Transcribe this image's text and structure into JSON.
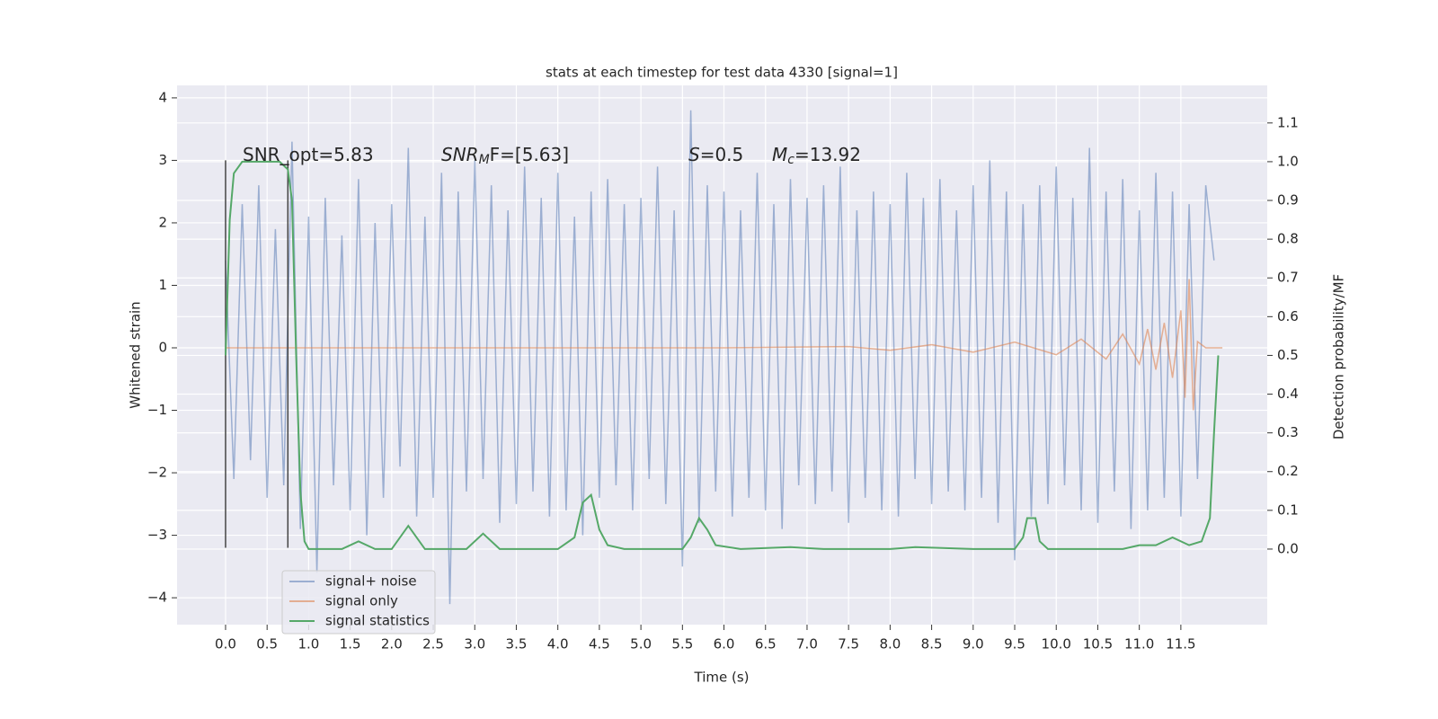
{
  "chart_data": {
    "type": "line",
    "title": "stats at each timestep for test data 4330 [signal=1]",
    "xlabel": "Time (s)",
    "ylabel": "Whitened strain",
    "y2label": "Detection probability/MF",
    "xlim": [
      -0.584,
      12.54
    ],
    "ylim": [
      -4.43,
      4.2
    ],
    "y2lim": [
      -0.195,
      1.197
    ],
    "xticks": [
      {
        "value": 0,
        "label": "0.0"
      },
      0.5,
      {
        "value": 1,
        "label": "1.0"
      },
      1.5,
      {
        "value": 2,
        "label": "2.0"
      },
      2.5,
      {
        "value": 3,
        "label": "3.0"
      },
      3.5,
      {
        "value": 4,
        "label": "4.0"
      },
      4.5,
      {
        "value": 5,
        "label": "5.0"
      },
      5.5,
      {
        "value": 6,
        "label": "6.0"
      },
      6.5,
      {
        "value": 7,
        "label": "7.0"
      },
      7.5,
      {
        "value": 8,
        "label": "8.0"
      },
      8.5,
      {
        "value": 9,
        "label": "9.0"
      },
      9.5,
      {
        "value": 10,
        "label": "10.0"
      },
      10.5,
      {
        "value": 11,
        "label": "11.0"
      },
      11.5
    ],
    "yticks": [
      {
        "value": -4,
        "label": "−4"
      },
      {
        "value": -3,
        "label": "−3"
      },
      {
        "value": -2,
        "label": "−2"
      },
      {
        "value": -1,
        "label": "−1"
      },
      0,
      1,
      2,
      3,
      4
    ],
    "y2ticks": [
      {
        "value": 0,
        "label": "0.0"
      },
      0.1,
      0.2,
      0.3,
      0.4,
      0.5,
      0.6,
      0.7,
      0.8,
      0.9,
      {
        "value": 1,
        "label": "1.0"
      },
      1.1
    ],
    "grid": true,
    "legend": "lower left",
    "annotations": [
      {
        "text": "SNR_opt=5.83"
      },
      {
        "text": "SNR",
        "sub": "M",
        "after": "F=[5.63]"
      },
      {
        "text": "S",
        "after": "=0.5"
      },
      {
        "text": "M",
        "sub": "c",
        "after": "=13.92"
      }
    ],
    "vlines": [
      {
        "x": 0,
        "ymin": -3.2,
        "ymax": 3,
        "color": "#444444"
      },
      {
        "x": 0.75,
        "ymin": -3.2,
        "ymax": 3,
        "color": "#444444"
      }
    ],
    "series": [
      {
        "name": "signal+ noise",
        "color": "#4c72b0",
        "opacity": 0.5,
        "x": [
          0,
          0.1,
          0.2,
          0.3,
          0.4,
          0.5,
          0.6,
          0.7,
          0.8,
          0.9,
          1,
          1.1,
          1.2,
          1.3,
          1.4,
          1.5,
          1.6,
          1.7,
          1.8,
          1.9,
          2,
          2.1,
          2.2,
          2.3,
          2.4,
          2.5,
          2.6,
          2.7,
          2.8,
          2.9,
          3,
          3.1,
          3.2,
          3.3,
          3.4,
          3.5,
          3.6,
          3.7,
          3.8,
          3.9,
          4,
          4.1,
          4.2,
          4.3,
          4.4,
          4.5,
          4.6,
          4.7,
          4.8,
          4.9,
          5,
          5.1,
          5.2,
          5.3,
          5.4,
          5.5,
          5.6,
          5.7,
          5.8,
          5.9,
          6,
          6.1,
          6.2,
          6.3,
          6.4,
          6.5,
          6.6,
          6.7,
          6.8,
          6.9,
          7,
          7.1,
          7.2,
          7.3,
          7.4,
          7.5,
          7.6,
          7.7,
          7.8,
          7.9,
          8,
          8.1,
          8.2,
          8.3,
          8.4,
          8.5,
          8.6,
          8.7,
          8.8,
          8.9,
          9,
          9.1,
          9.2,
          9.3,
          9.4,
          9.5,
          9.6,
          9.7,
          9.8,
          9.9,
          10,
          10.1,
          10.2,
          10.3,
          10.4,
          10.5,
          10.6,
          10.7,
          10.8,
          10.9,
          11,
          11.1,
          11.2,
          11.3,
          11.4,
          11.5,
          11.6,
          11.7,
          11.8,
          11.9
        ],
        "values": [
          1.4,
          -2.1,
          2.3,
          -1.8,
          2.6,
          -2.4,
          1.9,
          -2.2,
          3.3,
          -2.9,
          2.1,
          -3.6,
          2.4,
          -2.2,
          1.8,
          -2.6,
          2.7,
          -3.0,
          2.0,
          -2.4,
          2.3,
          -1.9,
          3.2,
          -2.7,
          2.1,
          -2.4,
          2.8,
          -4.1,
          2.5,
          -2.3,
          3.0,
          -2.1,
          2.6,
          -2.8,
          2.2,
          -2.5,
          2.9,
          -2.3,
          2.4,
          -2.7,
          2.8,
          -2.6,
          2.1,
          -3.0,
          2.5,
          -2.4,
          2.7,
          -2.2,
          2.3,
          -2.6,
          2.4,
          -2.1,
          2.9,
          -2.5,
          2.2,
          -3.5,
          3.8,
          -2.8,
          2.6,
          -2.3,
          2.5,
          -2.7,
          2.2,
          -2.4,
          2.8,
          -2.6,
          2.3,
          -2.9,
          2.7,
          -2.2,
          2.4,
          -2.5,
          2.6,
          -2.3,
          2.9,
          -2.8,
          2.2,
          -2.4,
          2.5,
          -2.6,
          2.3,
          -2.7,
          2.8,
          -2.1,
          2.4,
          -2.5,
          2.7,
          -2.3,
          2.2,
          -2.6,
          2.6,
          -2.4,
          3.0,
          -2.8,
          2.5,
          -3.4,
          2.3,
          -2.7,
          2.6,
          -2.5,
          2.9,
          -2.2,
          2.4,
          -2.6,
          3.2,
          -2.8,
          2.5,
          -2.3,
          2.7,
          -2.9,
          2.2,
          -2.6,
          2.8,
          -2.4,
          2.5,
          -2.7,
          2.3,
          -2.1,
          2.6,
          1.4
        ]
      },
      {
        "name": "signal only",
        "color": "#dd8452",
        "opacity": 0.6,
        "x": [
          0,
          2,
          4,
          6,
          7.5,
          8.0,
          8.5,
          9.0,
          9.5,
          10.0,
          10.3,
          10.6,
          10.8,
          11.0,
          11.1,
          11.2,
          11.3,
          11.4,
          11.5,
          11.55,
          11.6,
          11.65,
          11.7,
          11.8,
          12.0
        ],
        "values": [
          0,
          0,
          0,
          0,
          0.02,
          -0.04,
          0.05,
          -0.07,
          0.09,
          -0.11,
          0.14,
          -0.18,
          0.22,
          -0.26,
          0.3,
          -0.35,
          0.4,
          -0.48,
          0.6,
          -0.8,
          1.1,
          -1.0,
          0.1,
          0,
          0
        ]
      },
      {
        "name": "signal statistics",
        "color": "#55a868",
        "opacity": 1,
        "axis": "y2",
        "x": [
          0,
          0.05,
          0.1,
          0.2,
          0.3,
          0.5,
          0.65,
          0.75,
          0.8,
          0.85,
          0.9,
          0.95,
          1.0,
          1.1,
          1.4,
          1.6,
          1.8,
          2.0,
          2.2,
          2.4,
          2.6,
          2.9,
          3.1,
          3.3,
          3.6,
          4.0,
          4.2,
          4.3,
          4.4,
          4.5,
          4.6,
          4.8,
          5.0,
          5.5,
          5.6,
          5.7,
          5.8,
          5.9,
          6.2,
          6.8,
          7.2,
          8.0,
          8.3,
          9.0,
          9.5,
          9.6,
          9.65,
          9.75,
          9.8,
          9.9,
          10.5,
          10.8,
          11.0,
          11.2,
          11.4,
          11.6,
          11.75,
          11.85,
          11.9,
          11.95
        ],
        "values": [
          0.5,
          0.85,
          0.97,
          1.0,
          1.0,
          1.0,
          1.0,
          0.98,
          0.9,
          0.5,
          0.15,
          0.02,
          0,
          0,
          0,
          0.02,
          0,
          0,
          0.06,
          0,
          0,
          0,
          0.04,
          0,
          0,
          0,
          0.03,
          0.12,
          0.14,
          0.05,
          0.01,
          0,
          0,
          0,
          0.03,
          0.08,
          0.05,
          0.01,
          0,
          0.005,
          0,
          0,
          0.005,
          0,
          0,
          0.03,
          0.08,
          0.08,
          0.02,
          0,
          0,
          0,
          0.01,
          0.01,
          0.03,
          0.01,
          0.02,
          0.08,
          0.3,
          0.5
        ]
      }
    ]
  }
}
